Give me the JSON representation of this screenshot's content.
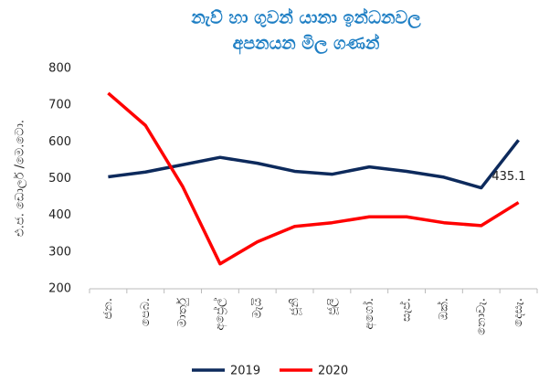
{
  "chart_data": {
    "type": "line",
    "title": [
      "නැව් හා ගුවන් යානා ඉන්ධනවල",
      "අපනයන මිල ගණන්"
    ],
    "ylabel": "එ.ජ. ඩොලර් /මෙ.ටො.",
    "categories": [
      "ජන.",
      "පෙබ.",
      "මාර්තු",
      "අප්‍රේල්",
      "මැයි",
      "ජූනි",
      "ජූලි",
      "අගෝ.",
      "සැප්.",
      "ඔක්.",
      "නොවැ.",
      "දෙසැ."
    ],
    "series": [
      {
        "name": "2019",
        "color": "#0d2a5c",
        "values": [
          505,
          518,
          538,
          558,
          542,
          520,
          512,
          532,
          520,
          504,
          475,
          605
        ]
      },
      {
        "name": "2020",
        "color": "#ff0000",
        "values": [
          733,
          645,
          478,
          268,
          328,
          370,
          380,
          396,
          396,
          380,
          372,
          435.1
        ]
      }
    ],
    "annotations": [
      {
        "series": 1,
        "index": 11,
        "text": "435.1"
      }
    ],
    "ylim": [
      200,
      800
    ],
    "yticks": [
      200,
      300,
      400,
      500,
      600,
      700,
      800
    ],
    "grid": false,
    "legend": "bottom"
  }
}
